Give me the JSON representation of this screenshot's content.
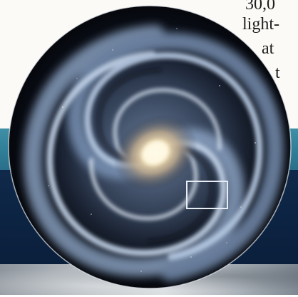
{
  "text_fragments": [
    "30,0",
    "light-",
    "at",
    "t"
  ],
  "colors": {
    "page": "#fbfaf6",
    "teal_band": "#2f7e98",
    "navy_band": "#0c2342",
    "galaxy_core": "#fff3cf",
    "spiral_arm": "#a9bfda",
    "highlight_box": "#ffffff"
  }
}
